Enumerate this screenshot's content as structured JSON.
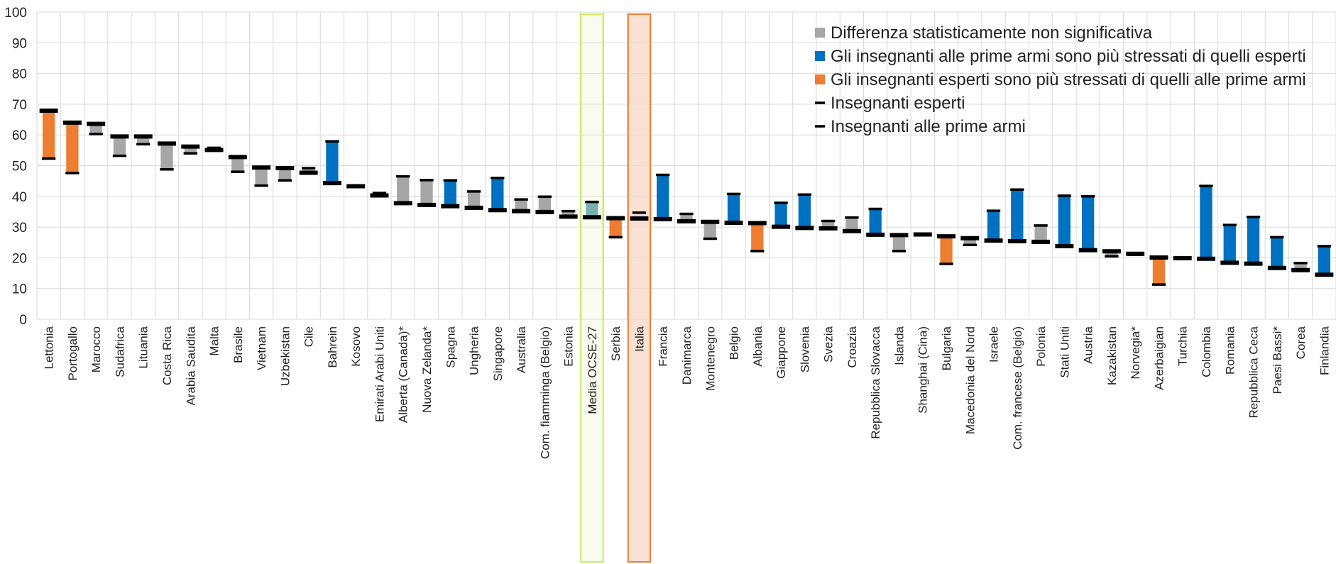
{
  "chart_data": {
    "type": "bar",
    "ylim": [
      0,
      100
    ],
    "yticks": [
      "0",
      "10",
      "20",
      "30",
      "40",
      "50",
      "60",
      "70",
      "80",
      "90",
      "100"
    ],
    "grid": true,
    "legend_position": "top-right",
    "legend": [
      {
        "kind": "gray",
        "label": "Differenza statisticamente non significativa"
      },
      {
        "kind": "blue",
        "label": "Gli insegnanti alle prime armi sono più stressati di quelli esperti"
      },
      {
        "kind": "orange",
        "label": "Gli insegnanti esperti sono più stressati di quelli alle prime armi"
      },
      {
        "kind": "dash_experienced",
        "label": "Insegnanti esperti"
      },
      {
        "kind": "dash_novice",
        "label": "Insegnanti alle prime armi"
      }
    ],
    "series": [
      {
        "key": "experienced",
        "name": "Insegnanti esperti"
      },
      {
        "key": "novice",
        "name": "Insegnanti alle prime armi"
      }
    ],
    "highlight": {
      "oecd": "Media OCSE-27",
      "italy": "Italia"
    },
    "colors": {
      "gray": "#a6a6a6",
      "blue": "#0070c0",
      "orange": "#ed7d31",
      "oecd_fill": "#7aaeb0",
      "oecd_box": "#c6ef59",
      "oecd_text": "#9bbb59",
      "italy_fill": "#f8d7c6",
      "italy_box": "#ed7d31",
      "dash": "#000000",
      "grid": "#d9d9d9"
    },
    "categories": [
      {
        "name": "Lettonia",
        "experienced": 67.9,
        "novice": 52.3,
        "sig": "orange"
      },
      {
        "name": "Portogallo",
        "experienced": 64.0,
        "novice": 47.6,
        "sig": "orange"
      },
      {
        "name": "Marocco",
        "experienced": 63.6,
        "novice": 60.3,
        "sig": "gray"
      },
      {
        "name": "Sudafrica",
        "experienced": 59.5,
        "novice": 53.2,
        "sig": "gray"
      },
      {
        "name": "Lituania",
        "experienced": 59.5,
        "novice": 57.0,
        "sig": "gray"
      },
      {
        "name": "Costa Rica",
        "experienced": 57.2,
        "novice": 48.8,
        "sig": "gray"
      },
      {
        "name": "Arabia Saudita",
        "experienced": 56.2,
        "novice": 54.0,
        "sig": "gray"
      },
      {
        "name": "Malta",
        "experienced": 55.1,
        "novice": 55.8,
        "sig": "gray"
      },
      {
        "name": "Brasile",
        "experienced": 52.8,
        "novice": 48.0,
        "sig": "gray"
      },
      {
        "name": "Vietnam",
        "experienced": 49.4,
        "novice": 43.5,
        "sig": "gray"
      },
      {
        "name": "Uzbekistan",
        "experienced": 49.2,
        "novice": 45.2,
        "sig": "gray"
      },
      {
        "name": "Cile",
        "experienced": 47.7,
        "novice": 49.2,
        "sig": "gray"
      },
      {
        "name": "Bahrein",
        "experienced": 44.3,
        "novice": 57.9,
        "sig": "blue"
      },
      {
        "name": "Kosovo",
        "experienced": 43.3,
        "novice": 43.3,
        "sig": "gray"
      },
      {
        "name": "Emirati Arabi Uniti",
        "experienced": 40.3,
        "novice": 41.1,
        "sig": "gray"
      },
      {
        "name": "Alberta (Canada)*",
        "experienced": 37.8,
        "novice": 46.5,
        "sig": "gray"
      },
      {
        "name": "Nuova Zelanda*",
        "experienced": 37.2,
        "novice": 45.3,
        "sig": "gray"
      },
      {
        "name": "Spagna",
        "experienced": 36.8,
        "novice": 45.2,
        "sig": "blue"
      },
      {
        "name": "Ungheria",
        "experienced": 36.3,
        "novice": 41.6,
        "sig": "gray"
      },
      {
        "name": "Singapore",
        "experienced": 35.5,
        "novice": 46.0,
        "sig": "blue"
      },
      {
        "name": "Australia",
        "experienced": 35.2,
        "novice": 39.0,
        "sig": "gray"
      },
      {
        "name": "Com. fiamminga (Belgio)",
        "experienced": 34.9,
        "novice": 39.9,
        "sig": "gray"
      },
      {
        "name": "Estonia",
        "experienced": 33.4,
        "novice": 35.2,
        "sig": "gray"
      },
      {
        "name": "Media OCSE-27",
        "experienced": 33.2,
        "novice": 38.2,
        "sig": "oecd"
      },
      {
        "name": "Serbia",
        "experienced": 32.9,
        "novice": 26.7,
        "sig": "orange"
      },
      {
        "name": "Italia",
        "experienced": 32.8,
        "novice": 34.7,
        "sig": "italy"
      },
      {
        "name": "Francia",
        "experienced": 32.6,
        "novice": 47.0,
        "sig": "blue"
      },
      {
        "name": "Danimarca",
        "experienced": 31.9,
        "novice": 34.3,
        "sig": "gray"
      },
      {
        "name": "Montenegro",
        "experienced": 31.7,
        "novice": 26.2,
        "sig": "gray"
      },
      {
        "name": "Belgio",
        "experienced": 31.4,
        "novice": 40.8,
        "sig": "blue"
      },
      {
        "name": "Albania",
        "experienced": 31.3,
        "novice": 22.2,
        "sig": "orange"
      },
      {
        "name": "Giappone",
        "experienced": 30.1,
        "novice": 37.9,
        "sig": "blue"
      },
      {
        "name": "Slovenia",
        "experienced": 29.7,
        "novice": 40.6,
        "sig": "blue"
      },
      {
        "name": "Svezia",
        "experienced": 29.6,
        "novice": 32.0,
        "sig": "gray"
      },
      {
        "name": "Croazia",
        "experienced": 28.7,
        "novice": 33.1,
        "sig": "gray"
      },
      {
        "name": "Repubblica Slovacca",
        "experienced": 27.5,
        "novice": 35.9,
        "sig": "blue"
      },
      {
        "name": "Islanda",
        "experienced": 27.4,
        "novice": 22.2,
        "sig": "gray"
      },
      {
        "name": "Shanghai (Cina)",
        "experienced": 27.6,
        "novice": 27.6,
        "sig": "gray"
      },
      {
        "name": "Bulgaria",
        "experienced": 27.0,
        "novice": 18.0,
        "sig": "orange"
      },
      {
        "name": "Macedonia del Nord",
        "experienced": 26.4,
        "novice": 24.2,
        "sig": "gray"
      },
      {
        "name": "Israele",
        "experienced": 25.6,
        "novice": 35.3,
        "sig": "blue"
      },
      {
        "name": "Com. francese (Belgio)",
        "experienced": 25.4,
        "novice": 42.2,
        "sig": "blue"
      },
      {
        "name": "Polonia",
        "experienced": 25.2,
        "novice": 30.5,
        "sig": "gray"
      },
      {
        "name": "Stati Uniti",
        "experienced": 23.8,
        "novice": 40.2,
        "sig": "blue"
      },
      {
        "name": "Austria",
        "experienced": 22.5,
        "novice": 40.0,
        "sig": "blue"
      },
      {
        "name": "Kazakistan",
        "experienced": 22.1,
        "novice": 20.5,
        "sig": "gray"
      },
      {
        "name": "Norvegia*",
        "experienced": 21.3,
        "novice": 21.0,
        "sig": "gray"
      },
      {
        "name": "Azerbaigian",
        "experienced": 20.1,
        "novice": 11.3,
        "sig": "orange"
      },
      {
        "name": "Turchia",
        "experienced": 19.9,
        "novice": 20.1,
        "sig": "gray"
      },
      {
        "name": "Colombia",
        "experienced": 19.7,
        "novice": 43.4,
        "sig": "blue"
      },
      {
        "name": "Romania",
        "experienced": 18.4,
        "novice": 30.7,
        "sig": "blue"
      },
      {
        "name": "Repubblica Ceca",
        "experienced": 18.1,
        "novice": 33.3,
        "sig": "blue"
      },
      {
        "name": "Paesi Bassi*",
        "experienced": 16.7,
        "novice": 26.7,
        "sig": "blue"
      },
      {
        "name": "Corea",
        "experienced": 16.0,
        "novice": 18.3,
        "sig": "gray"
      },
      {
        "name": "Finlandia",
        "experienced": 14.5,
        "novice": 23.8,
        "sig": "blue"
      }
    ]
  }
}
